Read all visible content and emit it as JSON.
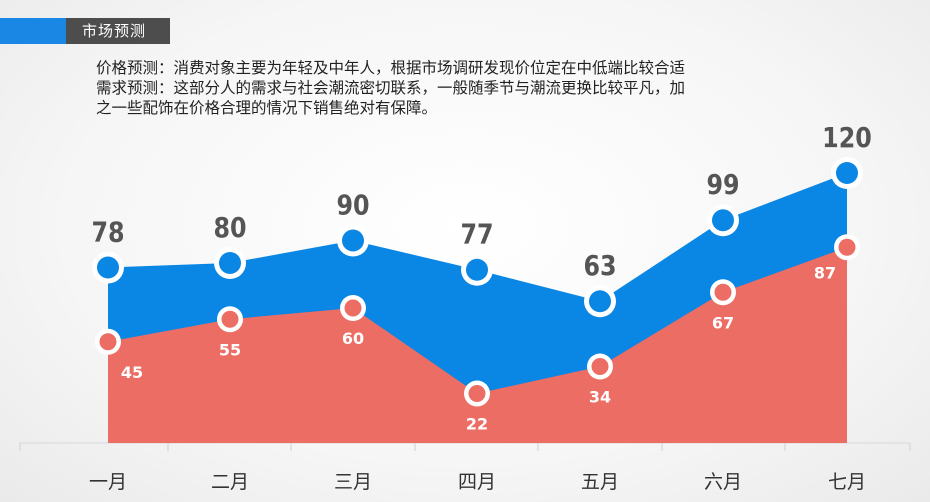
{
  "header": {
    "title": "市场预测"
  },
  "description": {
    "lines": [
      "价格预测：消费对象主要为年轻及中年人，根据市场调研发现价位定在中低端比较合适",
      "需求预测：这部分人的需求与社会潮流密切联系，一般随季节与潮流更换比较平凡，加",
      "之一些配饰在价格合理的情况下销售绝对有保障。"
    ]
  },
  "colors": {
    "blue": "#0a86e4",
    "red": "#ec6d64",
    "accent": "#1a87e4",
    "title_bg": "#4d4d4d"
  },
  "chart_data": {
    "type": "area",
    "categories": [
      "一月",
      "二月",
      "三月",
      "四月",
      "五月",
      "六月",
      "七月"
    ],
    "series": [
      {
        "values": [
          78,
          80,
          90,
          77,
          63,
          99,
          120
        ],
        "color": "#0a86e4"
      },
      {
        "values": [
          45,
          55,
          60,
          22,
          34,
          67,
          87
        ],
        "color": "#ec6d64"
      }
    ],
    "ylim": [
      0,
      130
    ],
    "grid": false,
    "legend": "none"
  }
}
